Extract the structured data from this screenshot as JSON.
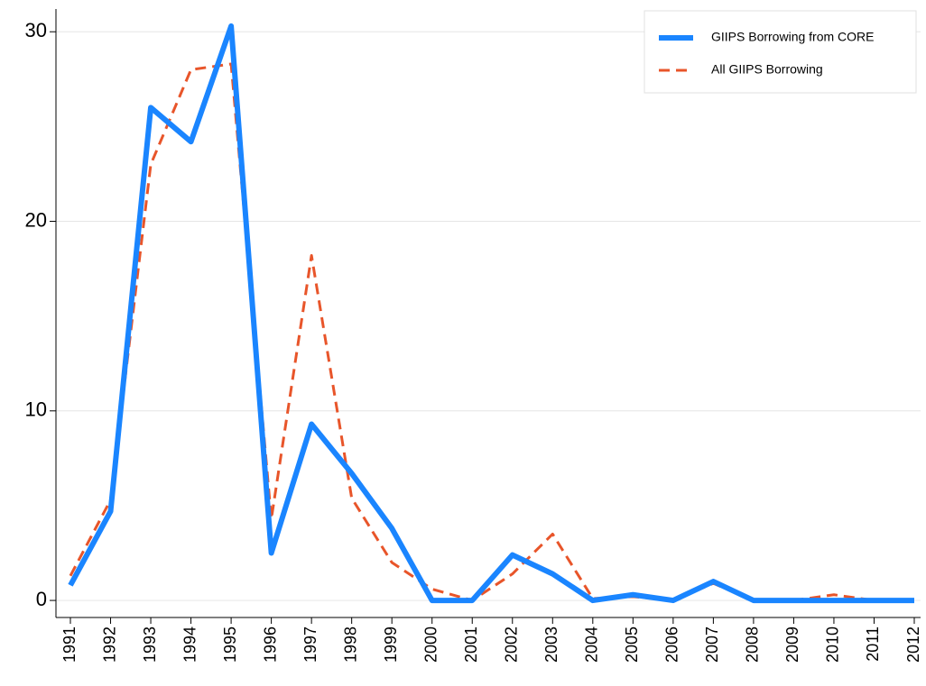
{
  "chart_data": {
    "type": "line",
    "categories": [
      "1991",
      "1992",
      "1993",
      "1994",
      "1995",
      "1996",
      "1997",
      "1998",
      "1999",
      "2000",
      "2001",
      "2002",
      "2003",
      "2004",
      "2005",
      "2006",
      "2007",
      "2008",
      "2009",
      "2010",
      "2011",
      "2012"
    ],
    "series": [
      {
        "name": "GIIPS Borrowing from CORE",
        "color": "#1a85ff",
        "style": "solid",
        "values": [
          0.8,
          4.7,
          26,
          24.2,
          30.3,
          2.5,
          9.3,
          6.7,
          3.8,
          0,
          0,
          2.4,
          1.4,
          0,
          0.3,
          0,
          1.0,
          0,
          0,
          0,
          0,
          0
        ]
      },
      {
        "name": "All GIIPS Borrowing",
        "color": "#e8552a",
        "style": "dashed",
        "values": [
          1.3,
          5.3,
          23,
          28,
          28.3,
          4.3,
          18.2,
          5.4,
          2.0,
          0.6,
          0,
          1.4,
          3.5,
          0.1,
          0.2,
          0,
          0.9,
          0,
          0,
          0.3,
          0,
          0
        ]
      }
    ],
    "ylim": [
      -0.9,
      31.2
    ],
    "yticks": [
      0,
      10,
      20,
      30
    ],
    "grid": true,
    "legend": "top-right"
  }
}
